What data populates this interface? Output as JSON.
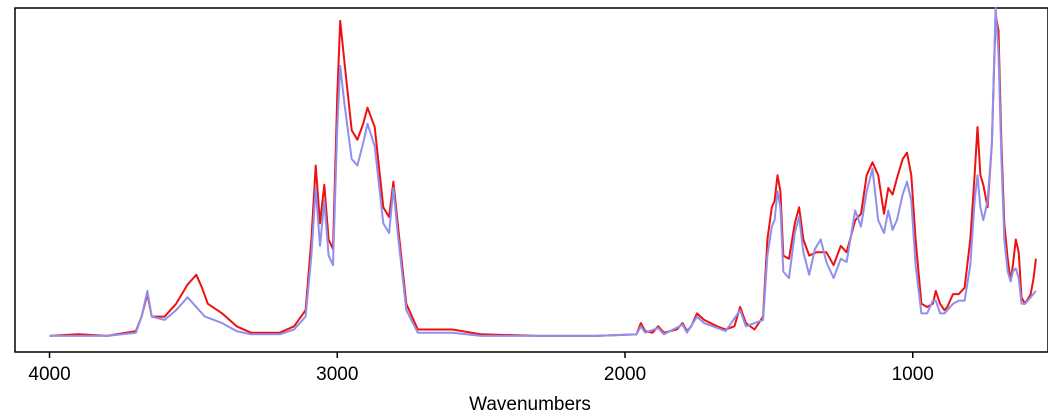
{
  "chart_data": {
    "type": "line",
    "title": "",
    "xlabel": "Wavenumbers",
    "ylabel": "",
    "xlim": [
      4120,
      530
    ],
    "ylim": [
      -0.05,
      1.02
    ],
    "x_reversed": true,
    "x_ticks": [
      4000,
      3000,
      2000,
      1000
    ],
    "x_tick_labels": [
      "4000",
      "3000",
      "2000",
      "1000"
    ],
    "grid": false,
    "legend": "none",
    "series": [
      {
        "color": "#ee1111",
        "points": [
          [
            4000,
            0.0
          ],
          [
            3900,
            0.005
          ],
          [
            3800,
            0.0
          ],
          [
            3700,
            0.015
          ],
          [
            3680,
            0.06
          ],
          [
            3660,
            0.13
          ],
          [
            3645,
            0.06
          ],
          [
            3600,
            0.06
          ],
          [
            3560,
            0.1
          ],
          [
            3520,
            0.16
          ],
          [
            3490,
            0.19
          ],
          [
            3470,
            0.15
          ],
          [
            3450,
            0.1
          ],
          [
            3400,
            0.07
          ],
          [
            3350,
            0.03
          ],
          [
            3300,
            0.01
          ],
          [
            3200,
            0.01
          ],
          [
            3150,
            0.03
          ],
          [
            3110,
            0.08
          ],
          [
            3090,
            0.3
          ],
          [
            3075,
            0.53
          ],
          [
            3060,
            0.35
          ],
          [
            3045,
            0.47
          ],
          [
            3030,
            0.3
          ],
          [
            3015,
            0.27
          ],
          [
            3000,
            0.75
          ],
          [
            2990,
            0.98
          ],
          [
            2975,
            0.85
          ],
          [
            2950,
            0.64
          ],
          [
            2930,
            0.61
          ],
          [
            2910,
            0.66
          ],
          [
            2895,
            0.71
          ],
          [
            2870,
            0.65
          ],
          [
            2840,
            0.4
          ],
          [
            2820,
            0.37
          ],
          [
            2805,
            0.48
          ],
          [
            2790,
            0.35
          ],
          [
            2760,
            0.1
          ],
          [
            2720,
            0.02
          ],
          [
            2700,
            0.02
          ],
          [
            2600,
            0.02
          ],
          [
            2500,
            0.005
          ],
          [
            2300,
            0.0
          ],
          [
            2100,
            0.0
          ],
          [
            1960,
            0.005
          ],
          [
            1945,
            0.04
          ],
          [
            1930,
            0.015
          ],
          [
            1905,
            0.01
          ],
          [
            1885,
            0.03
          ],
          [
            1865,
            0.01
          ],
          [
            1820,
            0.02
          ],
          [
            1800,
            0.04
          ],
          [
            1785,
            0.015
          ],
          [
            1770,
            0.03
          ],
          [
            1750,
            0.07
          ],
          [
            1725,
            0.05
          ],
          [
            1680,
            0.03
          ],
          [
            1650,
            0.02
          ],
          [
            1620,
            0.03
          ],
          [
            1600,
            0.09
          ],
          [
            1580,
            0.04
          ],
          [
            1550,
            0.02
          ],
          [
            1520,
            0.06
          ],
          [
            1505,
            0.3
          ],
          [
            1490,
            0.4
          ],
          [
            1480,
            0.42
          ],
          [
            1470,
            0.5
          ],
          [
            1460,
            0.45
          ],
          [
            1450,
            0.25
          ],
          [
            1430,
            0.24
          ],
          [
            1410,
            0.35
          ],
          [
            1395,
            0.4
          ],
          [
            1380,
            0.3
          ],
          [
            1360,
            0.25
          ],
          [
            1335,
            0.26
          ],
          [
            1300,
            0.26
          ],
          [
            1275,
            0.22
          ],
          [
            1250,
            0.28
          ],
          [
            1230,
            0.26
          ],
          [
            1200,
            0.36
          ],
          [
            1180,
            0.38
          ],
          [
            1160,
            0.5
          ],
          [
            1140,
            0.54
          ],
          [
            1120,
            0.5
          ],
          [
            1100,
            0.38
          ],
          [
            1085,
            0.46
          ],
          [
            1070,
            0.44
          ],
          [
            1055,
            0.49
          ],
          [
            1035,
            0.55
          ],
          [
            1020,
            0.57
          ],
          [
            1005,
            0.5
          ],
          [
            990,
            0.3
          ],
          [
            970,
            0.1
          ],
          [
            950,
            0.09
          ],
          [
            930,
            0.1
          ],
          [
            920,
            0.14
          ],
          [
            905,
            0.1
          ],
          [
            890,
            0.08
          ],
          [
            880,
            0.09
          ],
          [
            860,
            0.13
          ],
          [
            840,
            0.13
          ],
          [
            820,
            0.15
          ],
          [
            800,
            0.3
          ],
          [
            785,
            0.5
          ],
          [
            775,
            0.65
          ],
          [
            765,
            0.5
          ],
          [
            755,
            0.47
          ],
          [
            740,
            0.4
          ],
          [
            725,
            0.6
          ],
          [
            712,
            1.0
          ],
          [
            702,
            0.95
          ],
          [
            692,
            0.6
          ],
          [
            682,
            0.35
          ],
          [
            670,
            0.24
          ],
          [
            660,
            0.17
          ],
          [
            652,
            0.22
          ],
          [
            642,
            0.3
          ],
          [
            632,
            0.26
          ],
          [
            622,
            0.12
          ],
          [
            610,
            0.1
          ],
          [
            590,
            0.13
          ],
          [
            580,
            0.18
          ],
          [
            572,
            0.24
          ]
        ]
      },
      {
        "color": "#8f8fee",
        "points": [
          [
            4000,
            0.0
          ],
          [
            3900,
            0.0
          ],
          [
            3800,
            0.0
          ],
          [
            3700,
            0.01
          ],
          [
            3680,
            0.06
          ],
          [
            3660,
            0.14
          ],
          [
            3645,
            0.06
          ],
          [
            3600,
            0.05
          ],
          [
            3560,
            0.08
          ],
          [
            3520,
            0.12
          ],
          [
            3500,
            0.1
          ],
          [
            3460,
            0.06
          ],
          [
            3400,
            0.04
          ],
          [
            3350,
            0.015
          ],
          [
            3300,
            0.005
          ],
          [
            3200,
            0.005
          ],
          [
            3150,
            0.02
          ],
          [
            3110,
            0.06
          ],
          [
            3090,
            0.25
          ],
          [
            3075,
            0.46
          ],
          [
            3060,
            0.28
          ],
          [
            3045,
            0.42
          ],
          [
            3030,
            0.25
          ],
          [
            3015,
            0.22
          ],
          [
            3000,
            0.65
          ],
          [
            2990,
            0.84
          ],
          [
            2975,
            0.72
          ],
          [
            2950,
            0.55
          ],
          [
            2930,
            0.53
          ],
          [
            2910,
            0.6
          ],
          [
            2895,
            0.66
          ],
          [
            2870,
            0.59
          ],
          [
            2840,
            0.35
          ],
          [
            2820,
            0.32
          ],
          [
            2805,
            0.46
          ],
          [
            2790,
            0.32
          ],
          [
            2760,
            0.08
          ],
          [
            2720,
            0.01
          ],
          [
            2600,
            0.01
          ],
          [
            2500,
            0.0
          ],
          [
            2300,
            0.0
          ],
          [
            2100,
            0.0
          ],
          [
            1960,
            0.005
          ],
          [
            1945,
            0.03
          ],
          [
            1930,
            0.01
          ],
          [
            1885,
            0.025
          ],
          [
            1865,
            0.005
          ],
          [
            1800,
            0.035
          ],
          [
            1785,
            0.01
          ],
          [
            1750,
            0.06
          ],
          [
            1725,
            0.04
          ],
          [
            1650,
            0.015
          ],
          [
            1600,
            0.08
          ],
          [
            1580,
            0.03
          ],
          [
            1520,
            0.05
          ],
          [
            1505,
            0.25
          ],
          [
            1490,
            0.34
          ],
          [
            1480,
            0.36
          ],
          [
            1470,
            0.45
          ],
          [
            1460,
            0.4
          ],
          [
            1450,
            0.2
          ],
          [
            1430,
            0.18
          ],
          [
            1410,
            0.32
          ],
          [
            1395,
            0.37
          ],
          [
            1380,
            0.26
          ],
          [
            1360,
            0.19
          ],
          [
            1340,
            0.27
          ],
          [
            1320,
            0.3
          ],
          [
            1300,
            0.23
          ],
          [
            1275,
            0.18
          ],
          [
            1250,
            0.24
          ],
          [
            1230,
            0.23
          ],
          [
            1200,
            0.39
          ],
          [
            1180,
            0.34
          ],
          [
            1160,
            0.45
          ],
          [
            1140,
            0.52
          ],
          [
            1120,
            0.36
          ],
          [
            1100,
            0.32
          ],
          [
            1085,
            0.39
          ],
          [
            1070,
            0.33
          ],
          [
            1055,
            0.36
          ],
          [
            1035,
            0.44
          ],
          [
            1020,
            0.48
          ],
          [
            1005,
            0.42
          ],
          [
            990,
            0.22
          ],
          [
            970,
            0.07
          ],
          [
            950,
            0.07
          ],
          [
            930,
            0.11
          ],
          [
            920,
            0.11
          ],
          [
            905,
            0.07
          ],
          [
            890,
            0.07
          ],
          [
            860,
            0.1
          ],
          [
            840,
            0.11
          ],
          [
            820,
            0.11
          ],
          [
            800,
            0.22
          ],
          [
            785,
            0.42
          ],
          [
            775,
            0.5
          ],
          [
            765,
            0.4
          ],
          [
            755,
            0.36
          ],
          [
            740,
            0.42
          ],
          [
            725,
            0.6
          ],
          [
            712,
            1.02
          ],
          [
            702,
            0.88
          ],
          [
            692,
            0.55
          ],
          [
            682,
            0.3
          ],
          [
            670,
            0.2
          ],
          [
            660,
            0.17
          ],
          [
            652,
            0.2
          ],
          [
            642,
            0.21
          ],
          [
            632,
            0.18
          ],
          [
            622,
            0.1
          ],
          [
            610,
            0.1
          ],
          [
            590,
            0.12
          ],
          [
            572,
            0.14
          ]
        ]
      }
    ]
  }
}
